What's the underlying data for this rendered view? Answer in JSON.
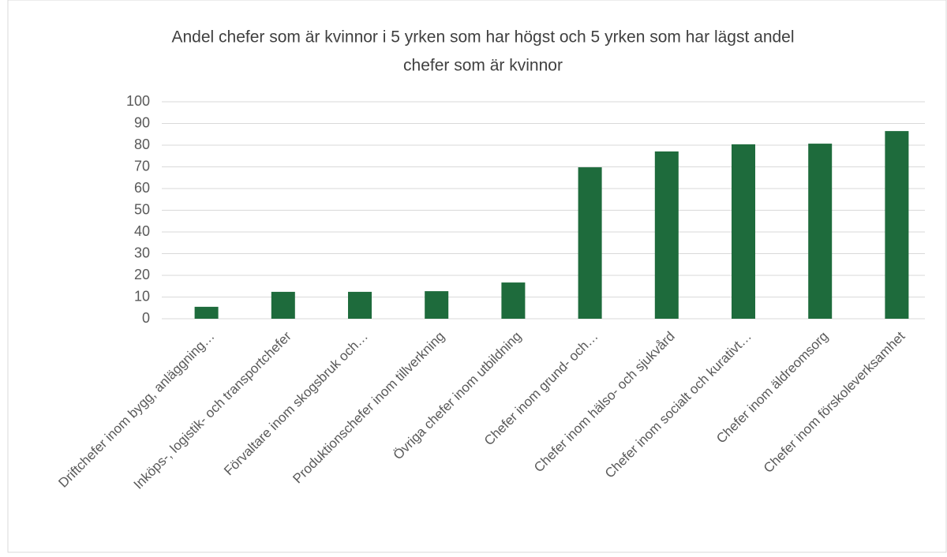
{
  "chart_data": {
    "type": "bar",
    "title": [
      "Andel chefer som är kvinnor i 5 yrken som har högst och 5 yrken som har lägst andel",
      "chefer som är kvinnor"
    ],
    "categories": [
      "Driftchefer inom bygg, anläggning…",
      "Inköps-, logistik- och transportchefer",
      "Förvaltare inom skogsbruk och…",
      "Produktionschefer inom tillverkning",
      "Övriga chefer inom utbildning",
      "Chefer inom grund- och…",
      "Chefer inom hälso- och sjukvård",
      "Chefer inom socialt och kurativt…",
      "Chefer inom äldreomsorg",
      "Chefer inom förskoleverksamhet"
    ],
    "values": [
      5.5,
      12.4,
      12.4,
      12.7,
      16.7,
      69.8,
      77.1,
      80.4,
      80.7,
      86.5
    ],
    "color": "#1e6b3c",
    "ylim": [
      0,
      100
    ],
    "yticks": [
      0,
      10,
      20,
      30,
      40,
      50,
      60,
      70,
      80,
      90,
      100
    ],
    "grid": true
  }
}
